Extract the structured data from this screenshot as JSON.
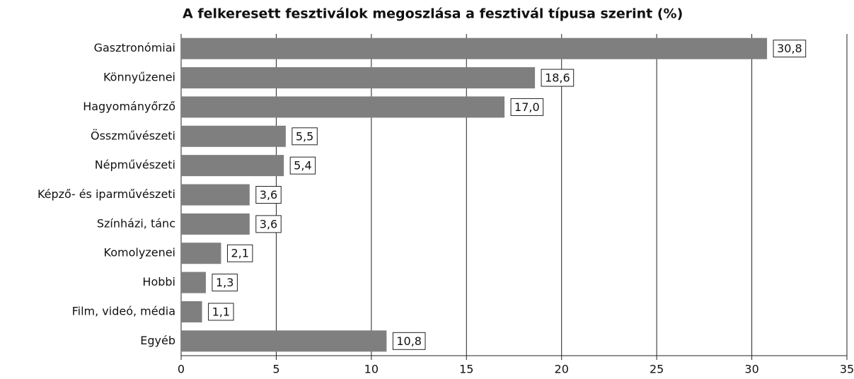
{
  "chart_data": {
    "type": "bar",
    "orientation": "horizontal",
    "title": "A felkeresett fesztiválok megoszlása a fesztivál típusa szerint (%)",
    "categories": [
      "Gasztronómiai",
      "Könnyűzenei",
      "Hagyományőrző",
      "Összművészeti",
      "Népművészeti",
      "Képző- és iparművészeti",
      "Színházi, tánc",
      "Komolyzenei",
      "Hobbi",
      "Film, videó, média",
      "Egyéb"
    ],
    "values": [
      30.8,
      18.6,
      17.0,
      5.5,
      5.4,
      3.6,
      3.6,
      2.1,
      1.3,
      1.1,
      10.8
    ],
    "value_labels": [
      "30,8",
      "18,6",
      "17,0",
      "5,5",
      "5,4",
      "3,6",
      "3,6",
      "2,1",
      "1,3",
      "1,1",
      "10,8"
    ],
    "color": "#7f7f7f",
    "xlim": [
      0,
      35
    ],
    "xticks": [
      0,
      5,
      10,
      15,
      20,
      25,
      30,
      35
    ],
    "grid": true
  }
}
